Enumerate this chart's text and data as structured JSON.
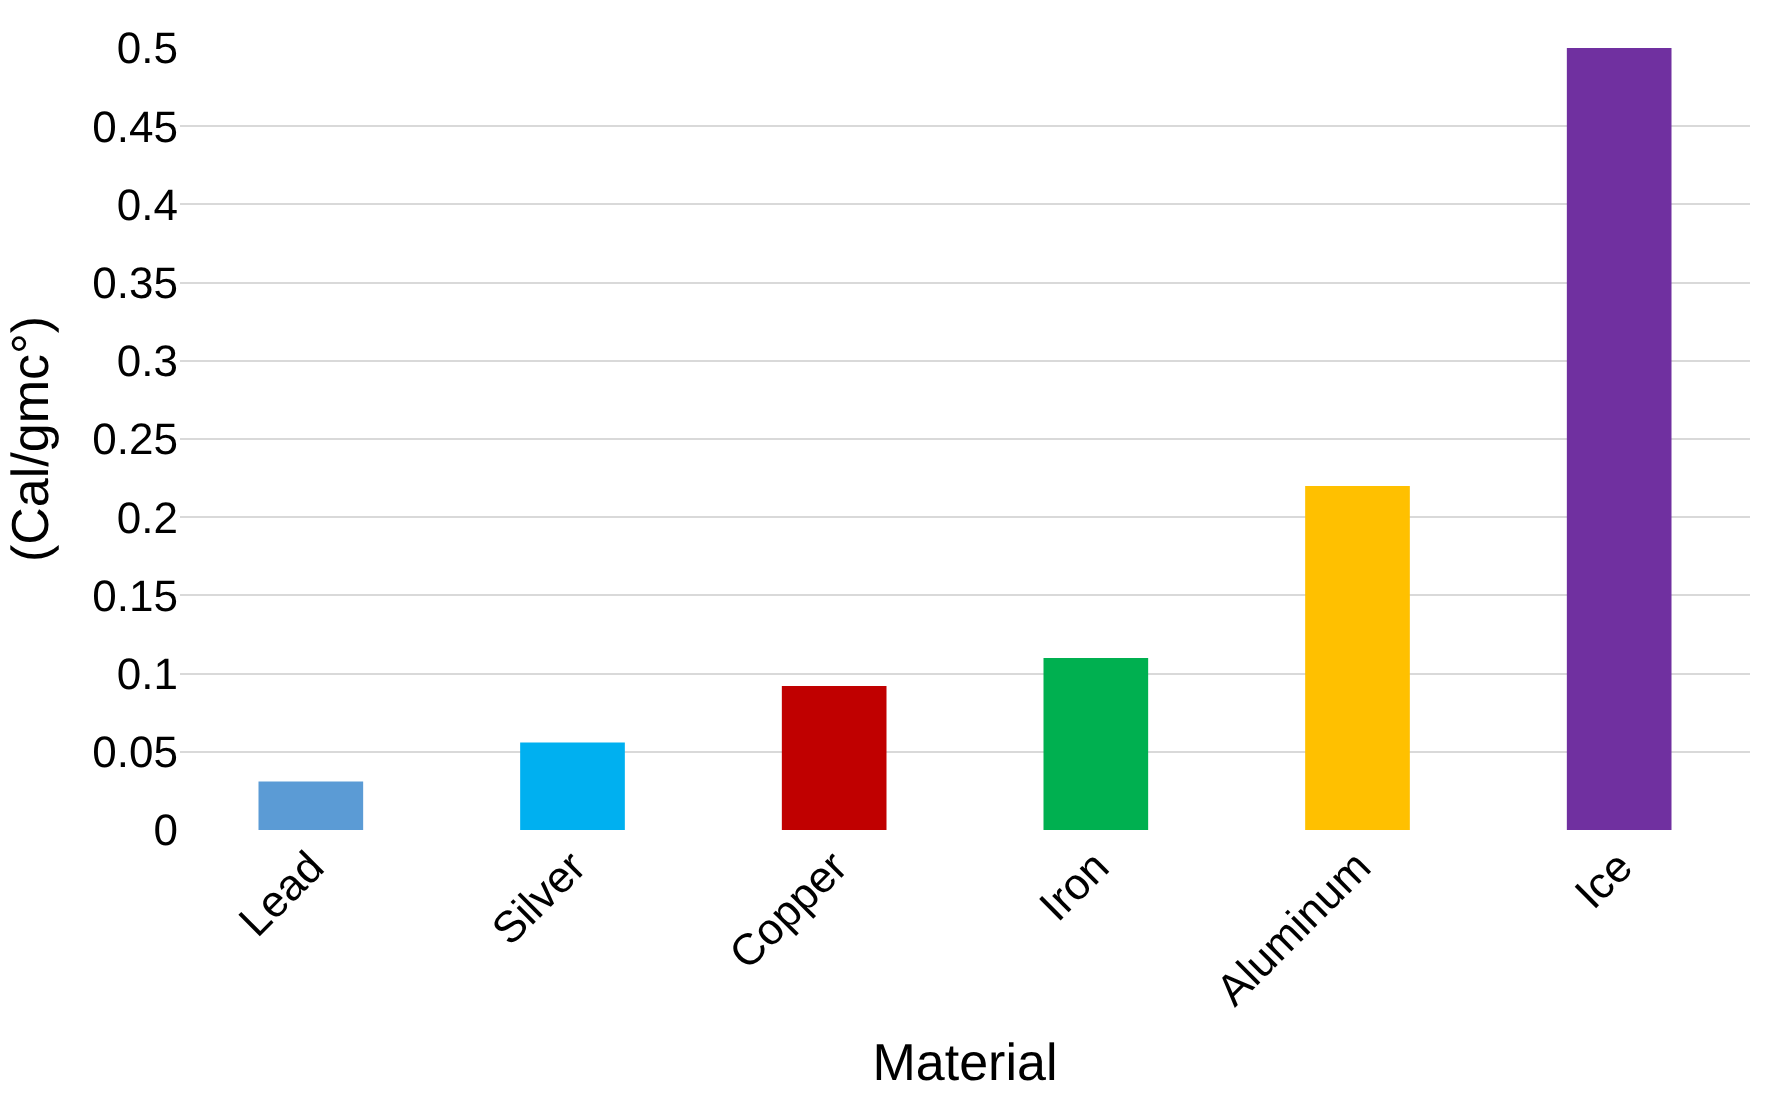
{
  "chart_data": {
    "type": "bar",
    "xlabel": "Material",
    "ylabel": "(Cal/gmc°)",
    "categories": [
      "Lead",
      "Silver",
      "Copper",
      "Iron",
      "Aluminum",
      "Ice"
    ],
    "values": [
      0.031,
      0.056,
      0.092,
      0.11,
      0.22,
      0.5
    ],
    "colors": [
      "#5b9bd5",
      "#00b0f0",
      "#c00000",
      "#00b050",
      "#ffc000",
      "#7030a0"
    ],
    "ylim": [
      0,
      0.5
    ],
    "yticks": [
      0,
      0.05,
      0.1,
      0.15,
      0.2,
      0.25,
      0.3,
      0.35,
      0.4,
      0.45,
      0.5
    ],
    "grid": "y"
  }
}
